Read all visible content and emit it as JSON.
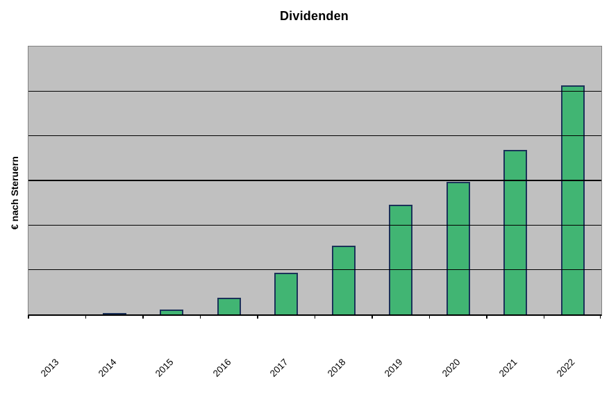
{
  "chart_data": {
    "type": "bar",
    "title": "Dividenden",
    "ylabel": "€ nach Steruern",
    "xlabel": "",
    "categories": [
      "2013",
      "2014",
      "2015",
      "2016",
      "2017",
      "2018",
      "2019",
      "2020",
      "2021",
      "2022"
    ],
    "series": [
      {
        "name": "Dividenden",
        "values": [
          0,
          0.5,
          1.7,
          6.2,
          15.5,
          25.6,
          40.9,
          49.5,
          61.4,
          85.5
        ]
      }
    ],
    "value_unit": "percent_of_y_axis_max",
    "note": "y-axis has no numeric tick labels; values estimated as % of plot height (6 equal gridline intervals)",
    "y_axis": {
      "tick_labels_visible": false,
      "gridline_intervals": 6,
      "internal_gridlines": 5
    },
    "x_axis": {
      "tick_marks": "category_boundaries",
      "label_rotation_deg": -45
    },
    "legend": "none",
    "grid": "horizontal",
    "colors": {
      "bar_fill": "#41b573",
      "bar_border": "#1b3159",
      "plot_background": "#c0c0c0",
      "plot_border": "#808080",
      "gridline": "#000000",
      "axis_line": "#000000",
      "text": "#000000",
      "page_background": "#ffffff"
    }
  }
}
